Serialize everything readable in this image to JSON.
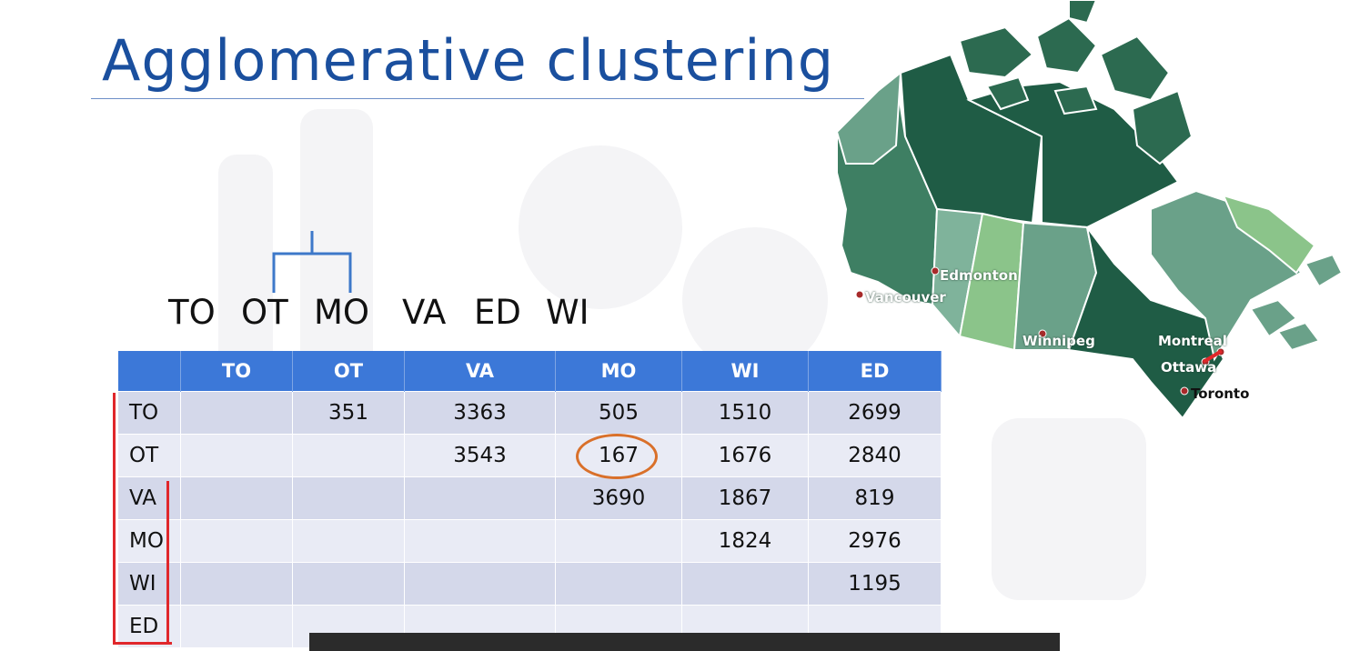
{
  "slide": {
    "title": "Agglomerative clustering"
  },
  "dendrogram": {
    "leaf_labels": [
      "TO",
      "OT",
      "MO",
      "VA",
      "ED",
      "WI"
    ]
  },
  "distance_table": {
    "headers": [
      "",
      "TO",
      "OT",
      "VA",
      "MO",
      "WI",
      "ED"
    ],
    "rows": [
      {
        "label": "TO",
        "cells": [
          "",
          "351",
          "3363",
          "505",
          "1510",
          "2699"
        ]
      },
      {
        "label": "OT",
        "cells": [
          "",
          "",
          "3543",
          "167",
          "1676",
          "2840"
        ]
      },
      {
        "label": "VA",
        "cells": [
          "",
          "",
          "",
          "3690",
          "1867",
          "819"
        ]
      },
      {
        "label": "MO",
        "cells": [
          "",
          "",
          "",
          "",
          "1824",
          "2976"
        ]
      },
      {
        "label": "WI",
        "cells": [
          "",
          "",
          "",
          "",
          "",
          "1195"
        ]
      },
      {
        "label": "ED",
        "cells": [
          "",
          "",
          "",
          "",
          "",
          ""
        ]
      }
    ],
    "highlighted_value": "167"
  },
  "map": {
    "cities": {
      "edmonton": "Edmonton",
      "vancouver": "Vancouver",
      "winnipeg": "Winnipeg",
      "montreal": "Montreal",
      "ottawa": "Ottawa",
      "toronto": "Toronto"
    }
  },
  "colors": {
    "title": "#1a4f9e",
    "table_header": "#3c78d8",
    "highlight_circle": "#d9702a",
    "bracket": "#e0272b"
  }
}
